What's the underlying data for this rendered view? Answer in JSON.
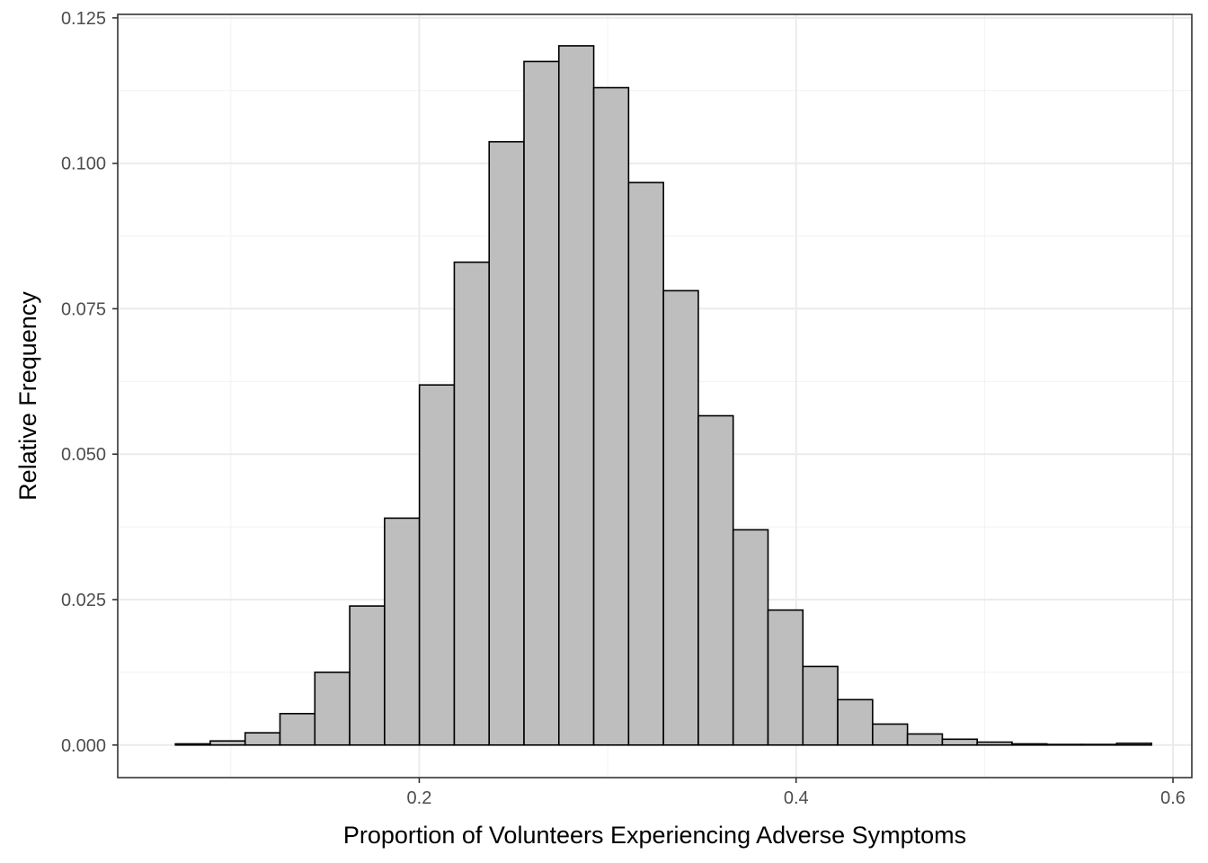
{
  "chart_data": {
    "type": "bar",
    "subtype": "histogram",
    "title": "",
    "xlabel": "Proportion of Volunteers Experiencing Adverse Symptoms",
    "ylabel": "Relative Frequency",
    "xlim": [
      0.04,
      0.61
    ],
    "ylim": [
      -0.0056,
      0.1256
    ],
    "x_major_ticks": [
      0.2,
      0.4,
      0.6
    ],
    "x_tick_labels": [
      "0.2",
      "0.4",
      "0.6"
    ],
    "x_minor_ticks": [
      0.1,
      0.3,
      0.5
    ],
    "y_major_ticks": [
      0,
      0.025,
      0.05,
      0.075,
      0.1,
      0.125
    ],
    "y_tick_labels": [
      "0.000",
      "0.025",
      "0.050",
      "0.075",
      "0.100",
      "0.125"
    ],
    "y_minor_ticks": [
      0.0125,
      0.0375,
      0.0625,
      0.0875,
      0.1125
    ],
    "grid": true,
    "bin_width": 0.0185,
    "bins": [
      {
        "start": 0.0706,
        "end": 0.0891,
        "value": 0.0002
      },
      {
        "start": 0.0891,
        "end": 0.1076,
        "value": 0.0007
      },
      {
        "start": 0.1076,
        "end": 0.1261,
        "value": 0.0021
      },
      {
        "start": 0.1261,
        "end": 0.1446,
        "value": 0.0054
      },
      {
        "start": 0.1446,
        "end": 0.1631,
        "value": 0.0125
      },
      {
        "start": 0.1631,
        "end": 0.1816,
        "value": 0.0239
      },
      {
        "start": 0.1816,
        "end": 0.2001,
        "value": 0.039
      },
      {
        "start": 0.2001,
        "end": 0.2186,
        "value": 0.0619
      },
      {
        "start": 0.2186,
        "end": 0.2371,
        "value": 0.083
      },
      {
        "start": 0.2371,
        "end": 0.2556,
        "value": 0.1037
      },
      {
        "start": 0.2556,
        "end": 0.2741,
        "value": 0.1175
      },
      {
        "start": 0.2741,
        "end": 0.2926,
        "value": 0.1202
      },
      {
        "start": 0.2926,
        "end": 0.3111,
        "value": 0.113
      },
      {
        "start": 0.3111,
        "end": 0.3296,
        "value": 0.0967
      },
      {
        "start": 0.3296,
        "end": 0.3481,
        "value": 0.0781
      },
      {
        "start": 0.3481,
        "end": 0.3666,
        "value": 0.0566
      },
      {
        "start": 0.3666,
        "end": 0.3851,
        "value": 0.037
      },
      {
        "start": 0.3851,
        "end": 0.4036,
        "value": 0.0232
      },
      {
        "start": 0.4036,
        "end": 0.4221,
        "value": 0.0135
      },
      {
        "start": 0.4221,
        "end": 0.4406,
        "value": 0.0078
      },
      {
        "start": 0.4406,
        "end": 0.4591,
        "value": 0.0036
      },
      {
        "start": 0.4591,
        "end": 0.4776,
        "value": 0.0019
      },
      {
        "start": 0.4776,
        "end": 0.4961,
        "value": 0.001
      },
      {
        "start": 0.4961,
        "end": 0.5146,
        "value": 0.0005
      },
      {
        "start": 0.5146,
        "end": 0.5331,
        "value": 0.0002
      },
      {
        "start": 0.5331,
        "end": 0.5516,
        "value": 0.0001
      },
      {
        "start": 0.5516,
        "end": 0.5701,
        "value": 0.0001
      },
      {
        "start": 0.5701,
        "end": 0.5886,
        "value": 0.0003
      }
    ],
    "colors": {
      "bar_fill": "#bebebe",
      "bar_outline": "#000000",
      "panel_border": "#333333",
      "major_grid": "#ebebeb",
      "minor_grid": "#f2f2f2",
      "tick_label": "#4d4d4d",
      "axis_title": "#000000"
    }
  }
}
